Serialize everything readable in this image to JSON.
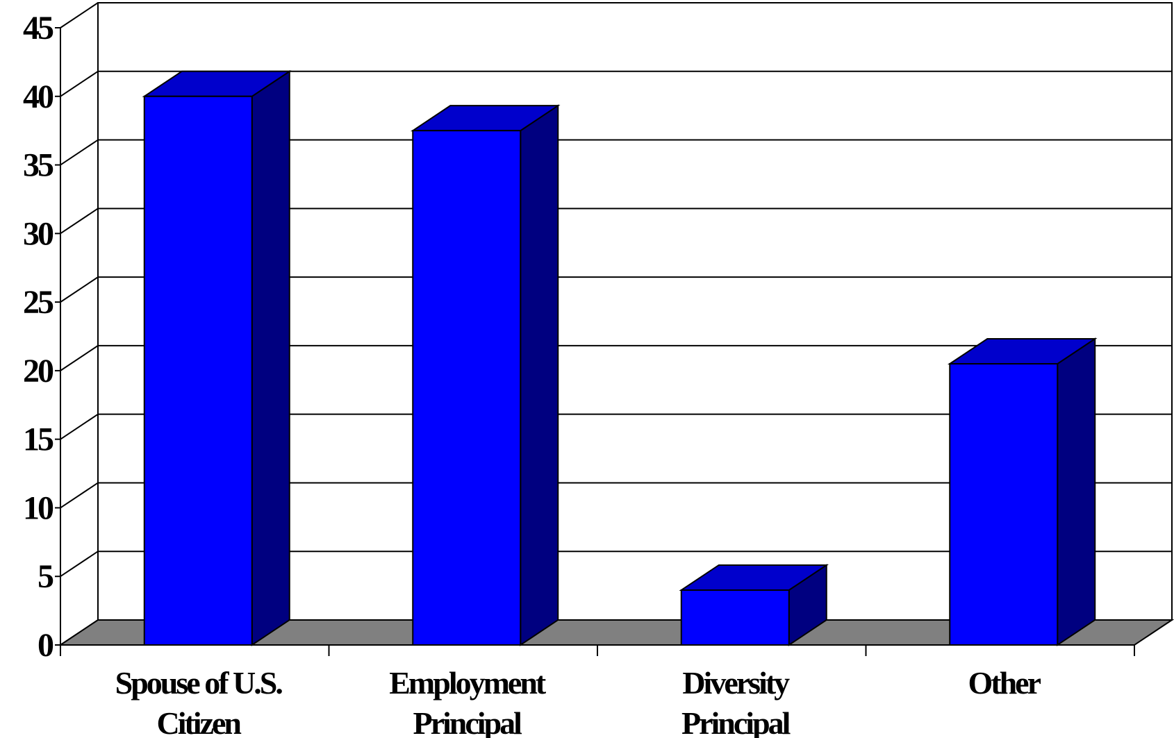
{
  "chart_data": {
    "type": "bar",
    "style": "3d",
    "categories": [
      [
        "Spouse of U.S.",
        "Citizen"
      ],
      [
        "Employment",
        "Principal"
      ],
      [
        "Diversity",
        "Principal"
      ],
      [
        "Other"
      ]
    ],
    "values": [
      40,
      37.5,
      4,
      20.5
    ],
    "ylim": [
      0,
      45
    ],
    "yticks": [
      "0",
      "5",
      "10",
      "15",
      "20",
      "25",
      "30",
      "35",
      "40",
      "45"
    ],
    "title": "",
    "xlabel": "",
    "ylabel": "",
    "grid": true,
    "legend": "none",
    "colors": {
      "bar_front": "#0000ff",
      "bar_top": "#0000cc",
      "bar_side": "#000080",
      "floor": "#808080",
      "gridline": "#000000"
    }
  }
}
